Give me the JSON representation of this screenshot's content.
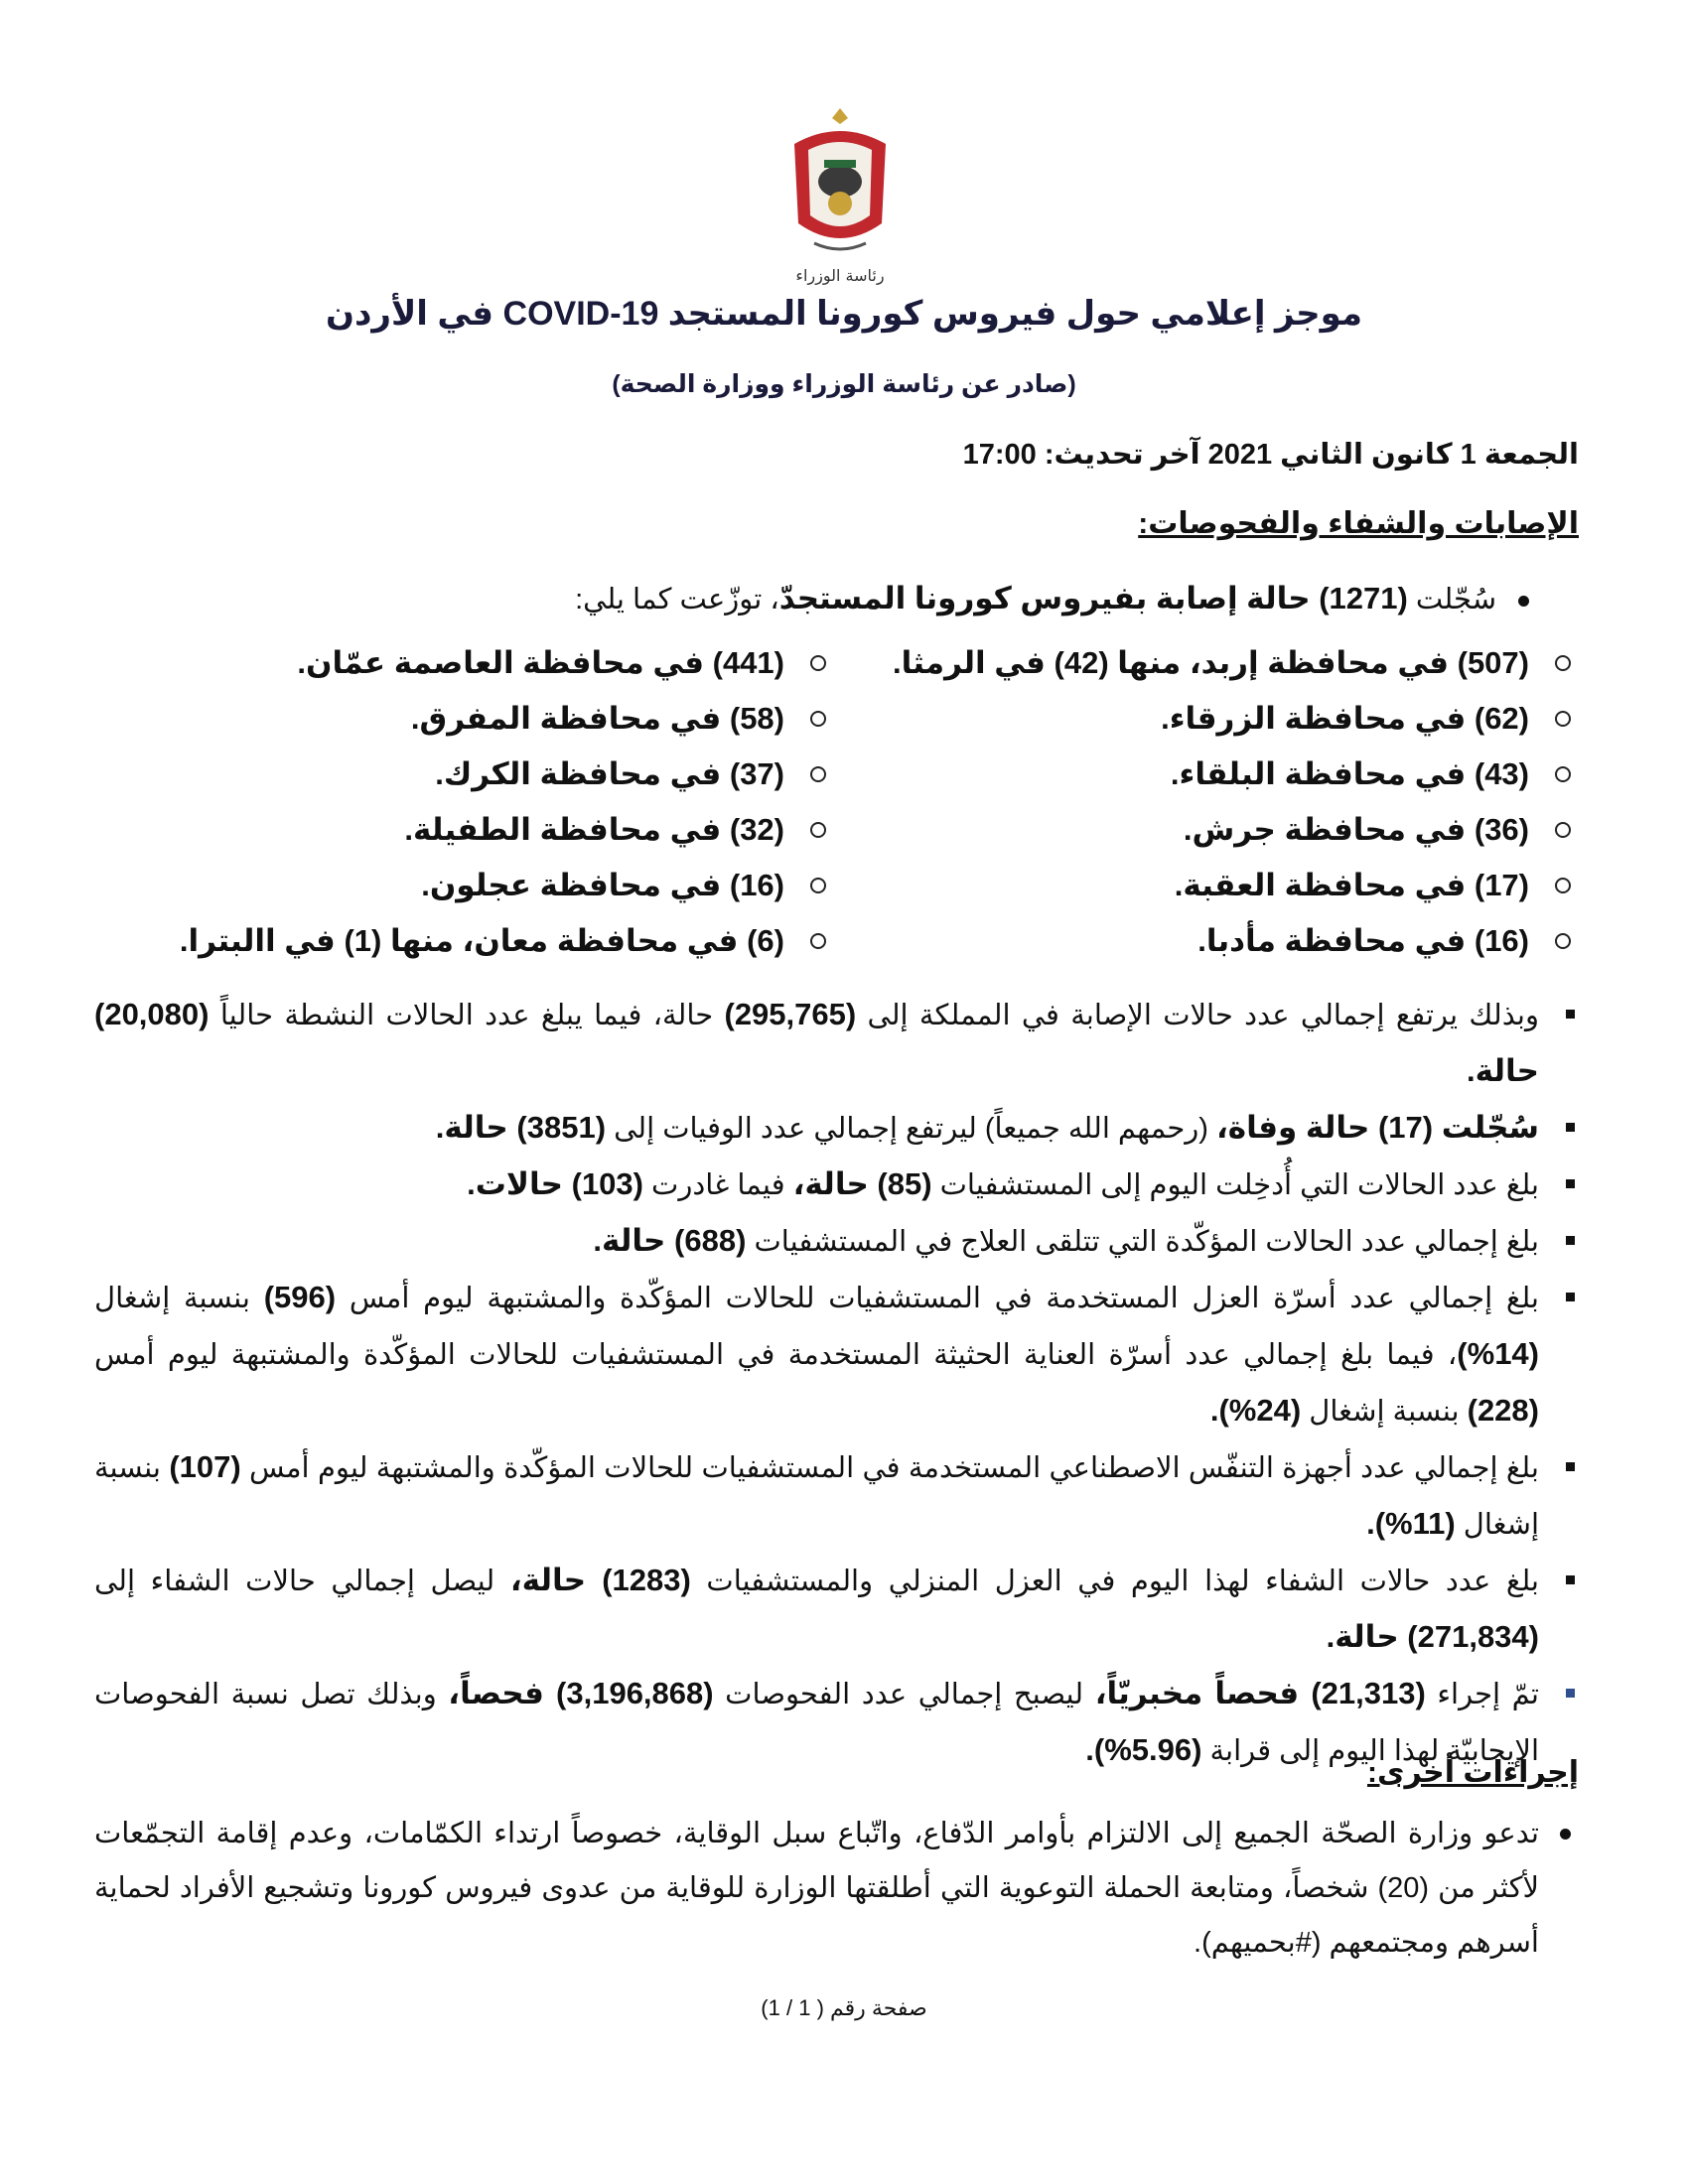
{
  "header": {
    "emblem_caption": "رئاسة الوزراء",
    "title": "موجز إعلامي حول فيروس كورونا المستجد COVID-19 في الأردن",
    "subtitle": "(صادر عن رئاسة الوزراء ووزارة الصحة)",
    "dateline": "الجمعة 1 كانون الثاني 2021 آخر تحديث: 17:00"
  },
  "section1": {
    "heading": "الإصابات والشفاء والفحوصات:",
    "intro": [
      {
        "t": "سُجّلت ",
        "b": false
      },
      {
        "t": "(1271) حالة إصابة بفيروس كورونا المستجدّ",
        "b": true
      },
      {
        "t": "، توزّعت كما يلي:",
        "b": false
      }
    ],
    "governorates": [
      [
        "(507) في محافظة إربد، منها (42) في الرمثا.",
        "(441) في محافظة العاصمة عمّان."
      ],
      [
        "(62) في محافظة الزرقاء.",
        "(58) في محافظة المفرق."
      ],
      [
        "(43) في محافظة البلقاء.",
        "(37) في محافظة الكرك."
      ],
      [
        "(36) في محافظة جرش.",
        "(32) في محافظة الطفيلة."
      ],
      [
        "(17) في محافظة العقبة.",
        "(16) في محافظة عجلون."
      ],
      [
        "(16) في محافظة مأدبا.",
        "(6) في محافظة معان، منها (1) في االبترا."
      ]
    ],
    "paragraphs": [
      [
        {
          "t": "وبذلك يرتفع إجمالي عدد حالات الإصابة في المملكة إلى ",
          "b": false
        },
        {
          "t": "(295,765)",
          "b": true
        },
        {
          "t": " حالة، فيما يبلغ عدد الحالات النشطة حالياً ",
          "b": false
        },
        {
          "t": "(20,080) حالة.",
          "b": true
        }
      ],
      [
        {
          "t": "سُجّلت (17) حالة وفاة،",
          "b": true
        },
        {
          "t": " (رحمهم الله جميعاً) ليرتفع إجمالي عدد الوفيات إلى ",
          "b": false
        },
        {
          "t": "(3851) حالة.",
          "b": true
        }
      ],
      [
        {
          "t": "بلغ عدد الحالات التي أُدخِلت اليوم إلى المستشفيات ",
          "b": false
        },
        {
          "t": "(85) حالة،",
          "b": true
        },
        {
          "t": " فيما غادرت ",
          "b": false
        },
        {
          "t": "(103) حالات.",
          "b": true
        }
      ],
      [
        {
          "t": "بلغ إجمالي عدد الحالات المؤكّدة التي تتلقى العلاج في المستشفيات ",
          "b": false
        },
        {
          "t": "(688) حالة.",
          "b": true
        }
      ],
      [
        {
          "t": "بلغ إجمالي عدد أسرّة العزل المستخدمة في المستشفيات للحالات المؤكّدة والمشتبهة ليوم أمس ",
          "b": false
        },
        {
          "t": "(596)",
          "b": true
        },
        {
          "t": " بنسبة إشغال ",
          "b": false
        },
        {
          "t": "(14%)",
          "b": true
        },
        {
          "t": "، فيما بلغ إجمالي عدد أسرّة العناية الحثيثة المستخدمة في المستشفيات للحالات المؤكّدة والمشتبهة ليوم أمس ",
          "b": false
        },
        {
          "t": "(228)",
          "b": true
        },
        {
          "t": " بنسبة إشغال ",
          "b": false
        },
        {
          "t": "(24%).",
          "b": true
        }
      ],
      [
        {
          "t": "بلغ إجمالي عدد أجهزة التنفّس الاصطناعي المستخدمة في المستشفيات للحالات المؤكّدة والمشتبهة ليوم أمس ",
          "b": false
        },
        {
          "t": "(107)",
          "b": true
        },
        {
          "t": " بنسبة إشغال ",
          "b": false
        },
        {
          "t": "(11%).",
          "b": true
        }
      ],
      [
        {
          "t": "بلغ عدد حالات الشفاء لهذا اليوم في العزل المنزلي والمستشفيات ",
          "b": false
        },
        {
          "t": "(1283) حالة،",
          "b": true
        },
        {
          "t": " ليصل إجمالي حالات الشفاء إلى ",
          "b": false
        },
        {
          "t": "(271,834) حالة.",
          "b": true
        }
      ],
      [
        {
          "t": "تمّ إجراء ",
          "b": false
        },
        {
          "t": "(21,313) فحصاً مخبريّاً،",
          "b": true
        },
        {
          "t": " ليصبح إجمالي عدد الفحوصات ",
          "b": false
        },
        {
          "t": "(3,196,868) فحصاً،",
          "b": true
        },
        {
          "t": " وبذلك تصل نسبة الفحوصات الإيجابيّة لهذا اليوم إلى قرابة ",
          "b": false
        },
        {
          "t": "(5.96%).",
          "b": true
        }
      ]
    ]
  },
  "section2": {
    "heading": "إجراءات أخرى:",
    "text": "تدعو وزارة الصحّة الجميع إلى الالتزام بأوامر الدّفاع، واتّباع سبل الوقاية، خصوصاً ارتداء الكمّامات، وعدم إقامة التجمّعات لأكثر من (20) شخصاً، ومتابعة الحملة التوعوية التي أطلقتها الوزارة للوقاية من عدوى فيروس كورونا وتشجيع الأفراد لحماية أسرهم ومجتمعهم (#بحميهم)."
  },
  "footer": {
    "page_number": "صفحة رقم ( 1 / 1)"
  },
  "colors": {
    "title": "#1a1a3a",
    "emblem_red": "#c0282d",
    "emblem_gold": "#c9a23a"
  }
}
